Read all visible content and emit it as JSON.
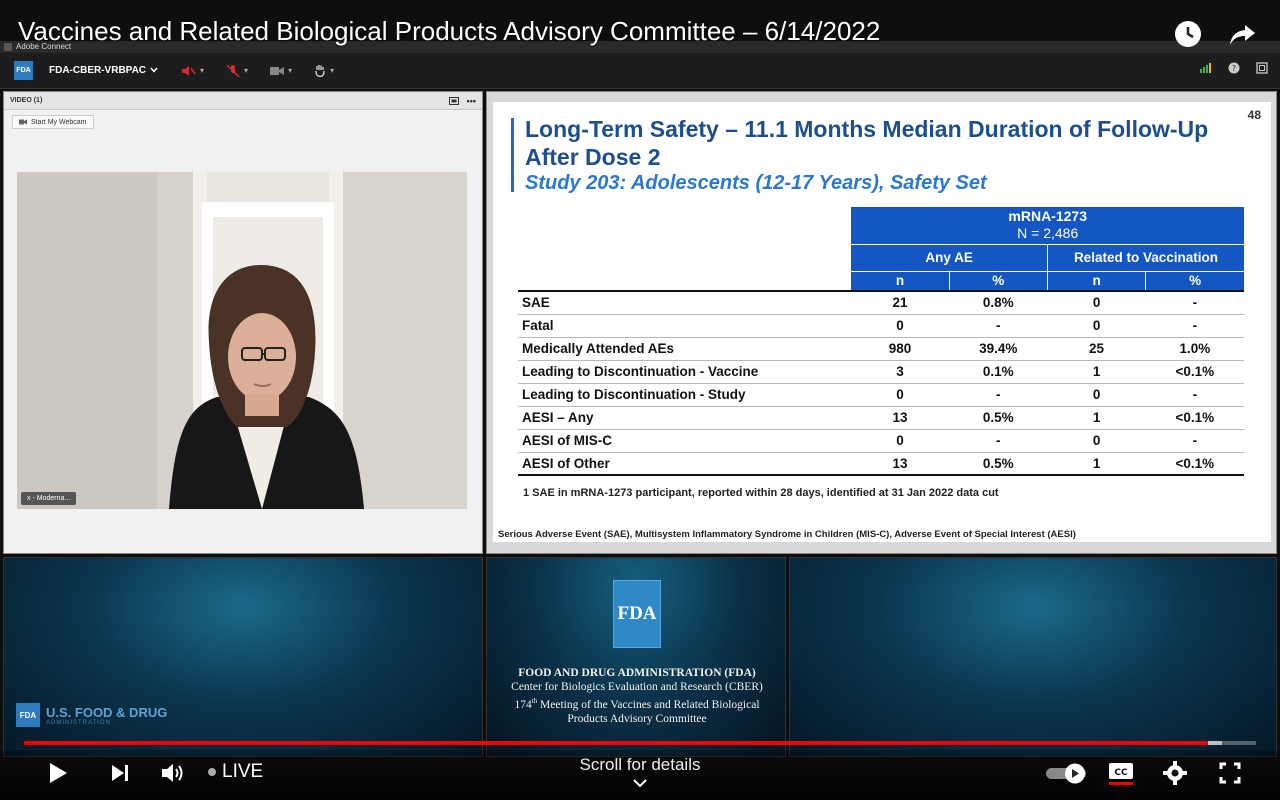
{
  "player": {
    "title": "Vaccines and Related Biological Products Advisory Committee – 6/14/2022",
    "live_label": "LIVE",
    "scroll_hint": "Scroll for details",
    "progress_fraction": 0.961
  },
  "adobe": {
    "app_title": "Adobe Connect",
    "room_name": "FDA-CBER-VRBPAC",
    "logo_text": "FDA"
  },
  "video_pod": {
    "title": "VIDEO (1)",
    "webcam_label": "Start My Webcam",
    "participant_name": "x - Moderna..."
  },
  "slide": {
    "page_number": "48",
    "title": "Long-Term Safety – 11.1 Months Median Duration of Follow-Up After Dose 2",
    "subtitle": "Study 203: Adolescents (12-17 Years), Safety Set",
    "group_header": "mRNA-1273",
    "group_n": "N = 2,486",
    "col_any_ae": "Any AE",
    "col_related": "Related to Vaccination",
    "sub_n": "n",
    "sub_pct": "%",
    "rows": [
      {
        "label": "SAE",
        "n1": "21",
        "p1": "0.8%",
        "n2": "0",
        "p2": "-"
      },
      {
        "label": "Fatal",
        "n1": "0",
        "p1": "-",
        "n2": "0",
        "p2": "-"
      },
      {
        "label": "Medically Attended AEs",
        "n1": "980",
        "p1": "39.4%",
        "n2": "25",
        "p2": "1.0%"
      },
      {
        "label": "Leading to Discontinuation - Vaccine",
        "n1": "3",
        "p1": "0.1%",
        "n2": "1",
        "p2": "<0.1%"
      },
      {
        "label": "Leading to Discontinuation - Study",
        "n1": "0",
        "p1": "-",
        "n2": "0",
        "p2": "-"
      },
      {
        "label": "AESI – Any",
        "n1": "13",
        "p1": "0.5%",
        "n2": "1",
        "p2": "<0.1%"
      },
      {
        "label": "AESI of MIS-C",
        "n1": "0",
        "p1": "-",
        "n2": "0",
        "p2": "-"
      },
      {
        "label": "AESI of Other",
        "n1": "13",
        "p1": "0.5%",
        "n2": "1",
        "p2": "<0.1%"
      }
    ],
    "footnote_1": "1 SAE in mRNA-1273 participant, reported within 28 days, identified at 31 Jan 2022 data cut",
    "footnote_2": "Serious Adverse Event (SAE), Multisystem Inflammatory Syndrome in Children (MIS-C), Adverse Event of Special Interest (AESI)"
  },
  "brand_panel": {
    "logo_text": "FDA",
    "name": "U.S. FOOD & DRUG",
    "sub": "ADMINISTRATION"
  },
  "center_panel": {
    "logo_text": "FDA",
    "line1": "FOOD AND DRUG ADMINISTRATION (FDA)",
    "line2": "Center for Biologics Evaluation and Research (CBER)",
    "line3_num": "174",
    "line3_sup": "th",
    "line3_rest": " Meeting of the Vaccines and Related Biological",
    "line4": "Products Advisory Committee"
  },
  "colors": {
    "slide_title": "#1d4f8f",
    "slide_subtitle": "#2b78d0",
    "table_header": "#1457c2",
    "progress": "#ee0000"
  }
}
